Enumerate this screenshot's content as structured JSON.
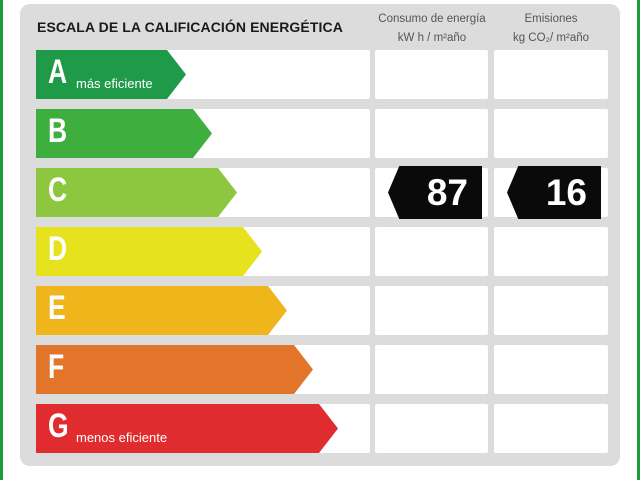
{
  "title": "ESCALA DE LA CALIFICACIÓN ENERGÉTICA",
  "columns": [
    {
      "line1": "Consumo de energía",
      "line2": "kW h / m²año"
    },
    {
      "line1": "Emisiones",
      "line2": "kg CO₂/ m²año"
    }
  ],
  "ratings": [
    {
      "letter": "A",
      "note": "más eficiente",
      "color": "#1f9a48"
    },
    {
      "letter": "B",
      "note": "",
      "color": "#3eae3e"
    },
    {
      "letter": "C",
      "note": "",
      "color": "#8dc63f"
    },
    {
      "letter": "D",
      "note": "",
      "color": "#e6e21e"
    },
    {
      "letter": "E",
      "note": "",
      "color": "#f1b51c"
    },
    {
      "letter": "F",
      "note": "",
      "color": "#e2752a"
    },
    {
      "letter": "G",
      "note": "menos eficiente",
      "color": "#e12c2f"
    }
  ],
  "current": {
    "rating": "C",
    "energy": "87",
    "emissions": "16"
  }
}
